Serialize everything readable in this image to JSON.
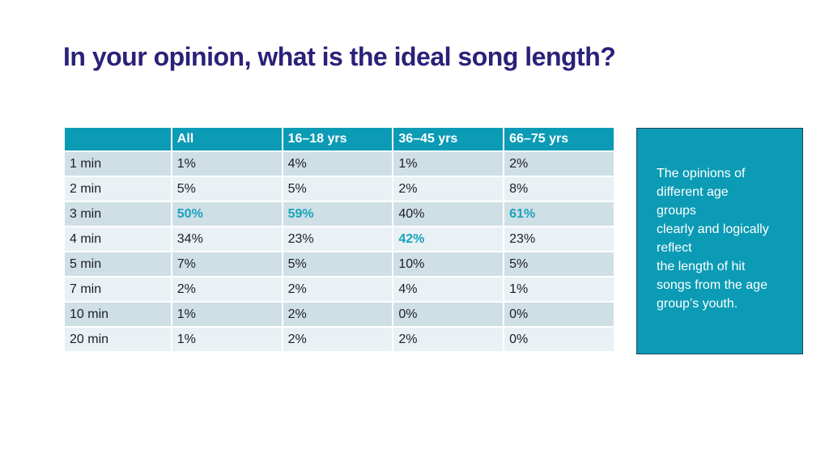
{
  "title": "In your opinion, what is the ideal song length?",
  "table": {
    "headers": [
      "",
      "All",
      "16–18 yrs",
      "36–45 yrs",
      "66–75 yrs"
    ],
    "rows": [
      {
        "label": "1 min",
        "values": [
          "1%",
          "4%",
          "1%",
          "2%"
        ]
      },
      {
        "label": "2 min",
        "values": [
          "5%",
          "5%",
          "2%",
          "8%"
        ]
      },
      {
        "label": "3 min",
        "values": [
          "50%",
          "59%",
          "40%",
          "61%"
        ]
      },
      {
        "label": "4 min",
        "values": [
          "34%",
          "23%",
          "42%",
          "23%"
        ]
      },
      {
        "label": "5 min",
        "values": [
          "7%",
          "5%",
          "10%",
          "5%"
        ]
      },
      {
        "label": "7 min",
        "values": [
          "2%",
          "2%",
          "4%",
          "1%"
        ]
      },
      {
        "label": "10 min",
        "values": [
          "1%",
          "2%",
          "0%",
          "0%"
        ]
      },
      {
        "label": "20 min",
        "values": [
          "1%",
          "2%",
          "2%",
          "0%"
        ]
      }
    ],
    "highlight_color": "#1aa3bd",
    "header_color": "#0b9bb5"
  },
  "note": {
    "lines": [
      "The opinions of",
      "different age",
      "groups",
      "clearly and logically",
      "reflect",
      "the length of hit",
      "songs from the age",
      "group’s youth."
    ]
  },
  "colors": {
    "title": "#2b2178",
    "note_box": "#0b9bb5",
    "row_dark": "#cfdfe6",
    "row_light": "#e9f1f4"
  }
}
